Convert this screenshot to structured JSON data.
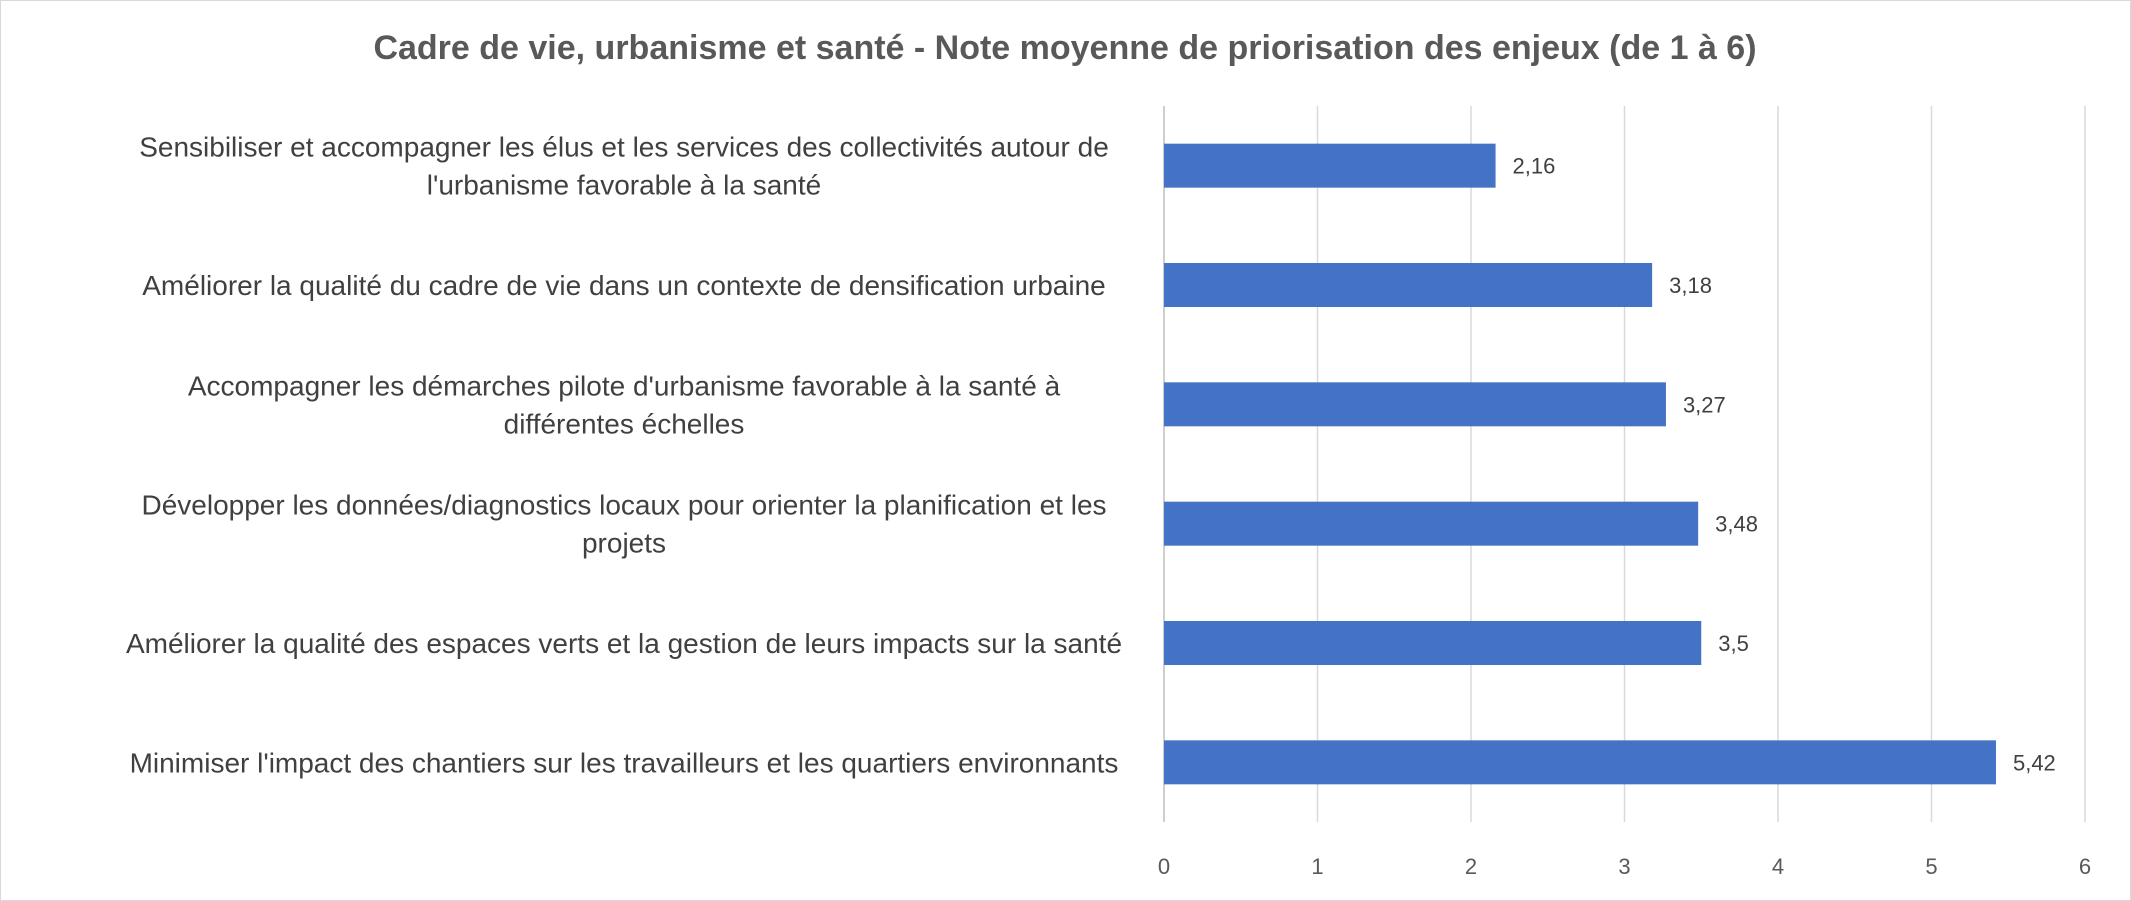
{
  "chart_data": {
    "type": "bar",
    "orientation": "horizontal",
    "title": "Cadre de vie, urbanisme et santé - Note moyenne de priorisation des enjeux (de 1 à 6)",
    "categories": [
      [
        "Sensibiliser et accompagner les élus et les services des collectivités autour de",
        "l'urbanisme favorable à la santé"
      ],
      [
        "Améliorer la qualité du cadre de vie dans un contexte de densification urbaine"
      ],
      [
        "Accompagner les démarches pilote d'urbanisme favorable à la santé à",
        "différentes échelles"
      ],
      [
        "Développer les données/diagnostics locaux pour orienter la planification et les",
        "projets"
      ],
      [
        "Améliorer la qualité des espaces verts et la gestion de leurs impacts sur la santé"
      ],
      [
        "Minimiser l'impact des chantiers sur les travailleurs et les quartiers environnants"
      ]
    ],
    "values": [
      2.16,
      3.18,
      3.27,
      3.48,
      3.5,
      5.42
    ],
    "value_labels": [
      "2,16",
      "3,18",
      "3,27",
      "3,48",
      "3,5",
      "5,42"
    ],
    "xlim": [
      0,
      6
    ],
    "xticks": [
      "0",
      "1",
      "2",
      "3",
      "4",
      "5",
      "6"
    ],
    "grid": true,
    "legend": "none",
    "bar_color": "#4472C4"
  }
}
